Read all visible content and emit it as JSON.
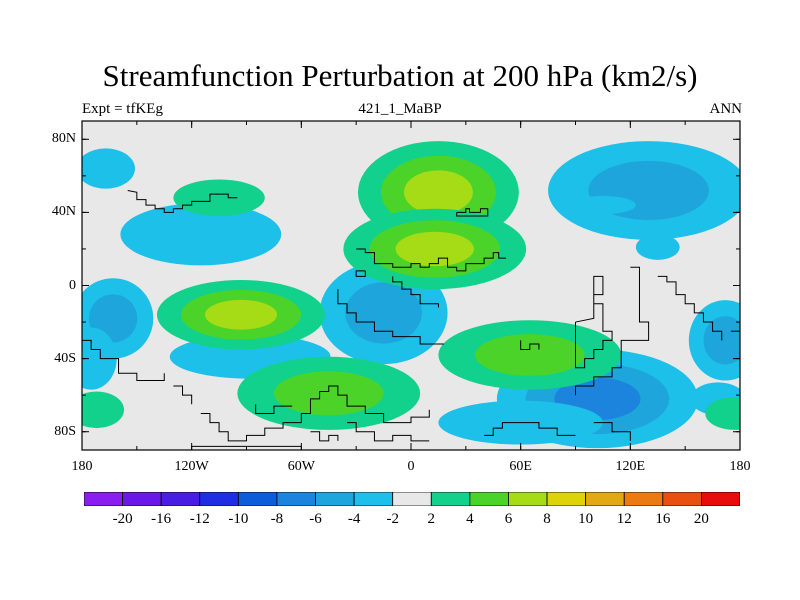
{
  "title": "Streamfunction Perturbation at 200 hPa (km2/s)",
  "subtitle_left": "Expt = tfKEg",
  "subtitle_center": "421_1_MaBP",
  "subtitle_right": "ANN",
  "axes": {
    "y_ticks": [
      {
        "label": "80N",
        "lat": 80
      },
      {
        "label": "40N",
        "lat": 40
      },
      {
        "label": "0",
        "lat": 0
      },
      {
        "label": "40S",
        "lat": -40
      },
      {
        "label": "80S",
        "lat": -80
      }
    ],
    "x_ticks": [
      {
        "label": "180",
        "lon": -180
      },
      {
        "label": "120W",
        "lon": -120
      },
      {
        "label": "60W",
        "lon": -60
      },
      {
        "label": "0",
        "lon": 0
      },
      {
        "label": "60E",
        "lon": 60
      },
      {
        "label": "120E",
        "lon": 120
      },
      {
        "label": "180",
        "lon": 180
      }
    ],
    "lon_range": [
      -180,
      180
    ],
    "lat_range": [
      -90,
      90
    ]
  },
  "colorbar": {
    "labels": [
      "-20",
      "-16",
      "-12",
      "-10",
      "-8",
      "-6",
      "-4",
      "-2",
      "2",
      "4",
      "6",
      "8",
      "10",
      "12",
      "16",
      "20"
    ],
    "colors": [
      "#8a1df0",
      "#6a18e8",
      "#4a1ee2",
      "#1f2ee3",
      "#0d5cd9",
      "#1c84dd",
      "#1ea6dc",
      "#1dc0e8",
      "#e8e8e8",
      "#12d18c",
      "#4bd32a",
      "#a6dc16",
      "#dcd309",
      "#e3a815",
      "#ec7a12",
      "#ea4f12",
      "#e80d0d"
    ]
  },
  "blobs": [
    {
      "lon": -167,
      "lat": 64,
      "rx": 16,
      "ry": 11,
      "levels": [
        0.5
      ]
    },
    {
      "lon": -115,
      "lat": 28,
      "rx": 44,
      "ry": 17,
      "levels": [
        0.5
      ]
    },
    {
      "lon": -163,
      "lat": -18,
      "rx": 22,
      "ry": 22,
      "levels": [
        0.5,
        0.75
      ]
    },
    {
      "lon": -175,
      "lat": -40,
      "rx": 14,
      "ry": 17,
      "levels": [
        0.5
      ]
    },
    {
      "lon": -88,
      "lat": -39,
      "rx": 44,
      "ry": 12,
      "levels": [
        0.5
      ]
    },
    {
      "lon": -15,
      "lat": -15,
      "rx": 35,
      "ry": 28,
      "levels": [
        0.5,
        0.75
      ]
    },
    {
      "lon": 45,
      "lat": 15,
      "rx": 15,
      "ry": 5,
      "levels": [
        0.5
      ]
    },
    {
      "lon": 130,
      "lat": 52,
      "rx": 55,
      "ry": 27,
      "levels": [
        0.5,
        0.75
      ]
    },
    {
      "lon": 105,
      "lat": 44,
      "rx": 18,
      "ry": 5,
      "levels": [
        0.5
      ]
    },
    {
      "lon": 102,
      "lat": -62,
      "rx": 55,
      "ry": 27,
      "levels": [
        0.5,
        0.75,
        1.0
      ]
    },
    {
      "lon": 60,
      "lat": -75,
      "rx": 45,
      "ry": 12,
      "levels": [
        0.5
      ]
    },
    {
      "lon": 172,
      "lat": -30,
      "rx": 20,
      "ry": 22,
      "levels": [
        0.5,
        0.75
      ]
    },
    {
      "lon": 168,
      "lat": -62,
      "rx": 15,
      "ry": 9,
      "levels": [
        0.5
      ]
    },
    {
      "lon": 135,
      "lat": 21,
      "rx": 12,
      "ry": 7,
      "levels": [
        0.5
      ]
    },
    {
      "lon": 15,
      "lat": 51,
      "rx": 44,
      "ry": 28,
      "levels": [
        0.5,
        0.65,
        0.83
      ]
    },
    {
      "lon": -105,
      "lat": 48,
      "rx": 25,
      "ry": 10,
      "levels": [
        0.5
      ]
    },
    {
      "lon": 13,
      "lat": 20,
      "rx": 50,
      "ry": 22,
      "levels": [
        0.5,
        0.66,
        0.83
      ]
    },
    {
      "lon": -93,
      "lat": -16,
      "rx": 46,
      "ry": 19,
      "levels": [
        0.5,
        0.66,
        0.83
      ]
    },
    {
      "lon": 65,
      "lat": -38,
      "rx": 50,
      "ry": 19,
      "levels": [
        0.5,
        0.75
      ]
    },
    {
      "lon": -45,
      "lat": -59,
      "rx": 50,
      "ry": 20,
      "levels": [
        0.5,
        0.75
      ]
    },
    {
      "lon": -172,
      "lat": -68,
      "rx": 15,
      "ry": 10,
      "levels": [
        0.5
      ]
    },
    {
      "lon": 177,
      "lat": -70,
      "rx": 16,
      "ry": 9,
      "levels": [
        0.5
      ]
    }
  ],
  "coastlines": [
    [
      [
        -155,
        52
      ],
      [
        -150,
        51
      ],
      [
        -150,
        47
      ],
      [
        -145,
        47
      ],
      [
        -145,
        44
      ],
      [
        -140,
        44
      ],
      [
        -140,
        42
      ],
      [
        -135,
        42
      ],
      [
        -135,
        40
      ],
      [
        -130,
        40
      ],
      [
        -130,
        42
      ],
      [
        -125,
        42
      ],
      [
        -125,
        44
      ],
      [
        -120,
        44
      ],
      [
        -120,
        46
      ],
      [
        -110,
        46
      ],
      [
        -110,
        50
      ],
      [
        -100,
        50
      ],
      [
        -100,
        48
      ],
      [
        -95,
        48
      ]
    ],
    [
      [
        25,
        40
      ],
      [
        30,
        40
      ],
      [
        30,
        42
      ],
      [
        32,
        42
      ],
      [
        32,
        40
      ],
      [
        38,
        40
      ],
      [
        38,
        42
      ],
      [
        42,
        42
      ],
      [
        42,
        38
      ],
      [
        30,
        38
      ],
      [
        25,
        38
      ],
      [
        25,
        40
      ]
    ],
    [
      [
        -25,
        8
      ],
      [
        -25,
        5
      ],
      [
        -30,
        5
      ],
      [
        -30,
        8
      ],
      [
        -25,
        8
      ]
    ],
    [
      [
        -40,
        -2
      ],
      [
        -40,
        -10
      ],
      [
        -35,
        -10
      ],
      [
        -35,
        -15
      ],
      [
        -30,
        -15
      ],
      [
        -30,
        -20
      ],
      [
        -20,
        -20
      ],
      [
        -20,
        -25
      ],
      [
        -10,
        -25
      ],
      [
        -10,
        -28
      ],
      [
        5,
        -28
      ],
      [
        5,
        -32
      ],
      [
        18,
        -32
      ]
    ],
    [
      [
        -30,
        20
      ],
      [
        -25,
        20
      ],
      [
        -25,
        18
      ],
      [
        -20,
        18
      ],
      [
        -20,
        12
      ],
      [
        -10,
        12
      ],
      [
        -10,
        10
      ],
      [
        0,
        10
      ],
      [
        0,
        12
      ],
      [
        5,
        12
      ],
      [
        5,
        10
      ],
      [
        10,
        10
      ],
      [
        10,
        12
      ],
      [
        15,
        12
      ],
      [
        15,
        15
      ],
      [
        20,
        15
      ],
      [
        20,
        10
      ],
      [
        25,
        10
      ],
      [
        25,
        8
      ],
      [
        30,
        8
      ],
      [
        30,
        12
      ],
      [
        40,
        12
      ],
      [
        40,
        15
      ],
      [
        45,
        15
      ],
      [
        45,
        18
      ],
      [
        48,
        18
      ],
      [
        48,
        15
      ],
      [
        52,
        15
      ]
    ],
    [
      [
        -10,
        5
      ],
      [
        -10,
        2
      ],
      [
        -5,
        2
      ],
      [
        -5,
        -2
      ],
      [
        0,
        -2
      ],
      [
        0,
        -5
      ],
      [
        5,
        -5
      ],
      [
        5,
        -10
      ],
      [
        15,
        -10
      ],
      [
        15,
        -12
      ]
    ],
    [
      [
        60,
        -30
      ],
      [
        60,
        -35
      ],
      [
        65,
        -35
      ],
      [
        65,
        -32
      ],
      [
        70,
        -32
      ],
      [
        70,
        -35
      ]
    ],
    [
      [
        90,
        -20
      ],
      [
        90,
        -45
      ],
      [
        95,
        -45
      ],
      [
        95,
        -40
      ],
      [
        100,
        -40
      ],
      [
        100,
        -35
      ],
      [
        105,
        -35
      ],
      [
        105,
        -30
      ],
      [
        110,
        -30
      ],
      [
        110,
        -25
      ],
      [
        105,
        -25
      ],
      [
        105,
        -10
      ],
      [
        100,
        -10
      ],
      [
        100,
        -5
      ],
      [
        105,
        -5
      ],
      [
        105,
        5
      ],
      [
        100,
        5
      ],
      [
        100,
        -18
      ],
      [
        90,
        -20
      ]
    ],
    [
      [
        120,
        10
      ],
      [
        125,
        10
      ],
      [
        125,
        -20
      ],
      [
        130,
        -20
      ],
      [
        130,
        -30
      ],
      [
        115,
        -30
      ],
      [
        115,
        -45
      ],
      [
        110,
        -45
      ],
      [
        110,
        -50
      ],
      [
        100,
        -50
      ],
      [
        100,
        -55
      ],
      [
        90,
        -55
      ],
      [
        90,
        -60
      ]
    ],
    [
      [
        135,
        5
      ],
      [
        140,
        5
      ],
      [
        140,
        2
      ],
      [
        145,
        2
      ],
      [
        145,
        -5
      ],
      [
        150,
        -5
      ],
      [
        150,
        -10
      ],
      [
        155,
        -10
      ],
      [
        155,
        -15
      ],
      [
        160,
        -15
      ],
      [
        160,
        -20
      ],
      [
        165,
        -20
      ],
      [
        165,
        -25
      ],
      [
        170,
        -25
      ],
      [
        170,
        -30
      ]
    ],
    [
      [
        175,
        -25
      ],
      [
        180,
        -25
      ]
    ],
    [
      [
        -180,
        -30
      ],
      [
        -175,
        -30
      ],
      [
        -175,
        -35
      ],
      [
        -170,
        -35
      ],
      [
        -170,
        -40
      ],
      [
        -160,
        -40
      ],
      [
        -160,
        -48
      ],
      [
        -150,
        -48
      ],
      [
        -150,
        -52
      ],
      [
        -135,
        -52
      ],
      [
        -135,
        -48
      ]
    ],
    [
      [
        -130,
        -55
      ],
      [
        -125,
        -55
      ],
      [
        -125,
        -60
      ],
      [
        -120,
        -60
      ],
      [
        -120,
        -65
      ]
    ],
    [
      [
        -115,
        -70
      ],
      [
        -110,
        -70
      ],
      [
        -110,
        -75
      ],
      [
        -105,
        -75
      ],
      [
        -105,
        -80
      ],
      [
        -100,
        -80
      ],
      [
        -100,
        -85
      ],
      [
        -90,
        -85
      ],
      [
        -90,
        -82
      ],
      [
        -80,
        -82
      ],
      [
        -80,
        -78
      ],
      [
        -70,
        -78
      ],
      [
        -70,
        -75
      ],
      [
        -60,
        -75
      ],
      [
        -60,
        -70
      ],
      [
        -55,
        -70
      ],
      [
        -55,
        -62
      ],
      [
        -50,
        -62
      ],
      [
        -50,
        -58
      ],
      [
        -45,
        -58
      ],
      [
        -45,
        -55
      ],
      [
        -40,
        -55
      ],
      [
        -40,
        -60
      ],
      [
        -35,
        -60
      ],
      [
        -35,
        -66
      ],
      [
        -25,
        -66
      ],
      [
        -25,
        -70
      ],
      [
        -15,
        -70
      ],
      [
        -15,
        -75
      ],
      [
        0,
        -75
      ],
      [
        0,
        -72
      ],
      [
        10,
        -72
      ],
      [
        10,
        -68
      ]
    ],
    [
      [
        -85,
        -65
      ],
      [
        -85,
        -70
      ],
      [
        -75,
        -70
      ],
      [
        -75,
        -66
      ],
      [
        -65,
        -66
      ]
    ],
    [
      [
        -55,
        -80
      ],
      [
        -50,
        -80
      ],
      [
        -50,
        -85
      ],
      [
        -45,
        -85
      ],
      [
        -45,
        -82
      ],
      [
        -40,
        -82
      ],
      [
        -40,
        -85
      ]
    ],
    [
      [
        -35,
        -75
      ],
      [
        -30,
        -75
      ],
      [
        -30,
        -80
      ],
      [
        -20,
        -80
      ],
      [
        -20,
        -85
      ],
      [
        -10,
        -85
      ],
      [
        -10,
        -82
      ],
      [
        0,
        -82
      ],
      [
        0,
        -85
      ],
      [
        10,
        -85
      ]
    ],
    [
      [
        40,
        -82
      ],
      [
        45,
        -82
      ],
      [
        45,
        -78
      ],
      [
        50,
        -78
      ],
      [
        50,
        -75
      ],
      [
        70,
        -75
      ],
      [
        70,
        -78
      ],
      [
        80,
        -78
      ],
      [
        80,
        -82
      ],
      [
        90,
        -82
      ]
    ],
    [
      [
        100,
        -75
      ],
      [
        110,
        -75
      ],
      [
        110,
        -80
      ],
      [
        120,
        -80
      ],
      [
        120,
        -85
      ]
    ],
    [
      [
        -120,
        -88
      ],
      [
        -60,
        -88
      ]
    ]
  ]
}
